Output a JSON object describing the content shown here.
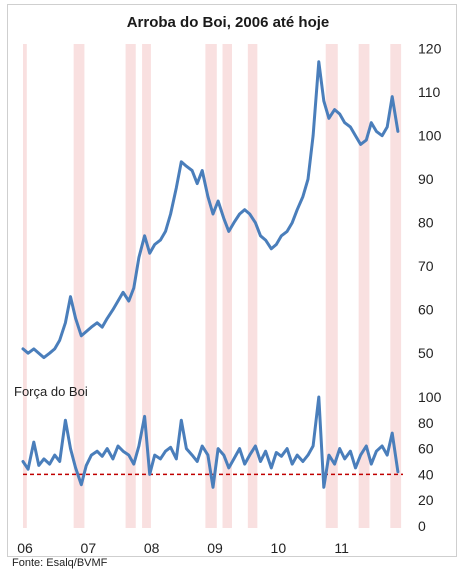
{
  "chart_data": [
    {
      "type": "line",
      "title": "Arroba do Boi, 2006 até hoje",
      "y_ticks": [
        "120",
        "110",
        "100",
        "90",
        "80",
        "70",
        "60",
        "50"
      ],
      "ylim": [
        45,
        122
      ],
      "x_ticks": [
        "06",
        "07",
        "08",
        "09",
        "10",
        "11"
      ],
      "xlim": [
        2006.0,
        2012.0
      ],
      "series": [
        {
          "color": "#4a7ebb",
          "x": [
            2006.0,
            2006.08,
            2006.17,
            2006.25,
            2006.33,
            2006.42,
            2006.5,
            2006.58,
            2006.67,
            2006.75,
            2006.83,
            2006.92,
            2007.0,
            2007.08,
            2007.17,
            2007.25,
            2007.33,
            2007.42,
            2007.5,
            2007.58,
            2007.67,
            2007.75,
            2007.83,
            2007.92,
            2008.0,
            2008.08,
            2008.17,
            2008.25,
            2008.33,
            2008.42,
            2008.5,
            2008.58,
            2008.67,
            2008.75,
            2008.83,
            2008.92,
            2009.0,
            2009.08,
            2009.17,
            2009.25,
            2009.33,
            2009.42,
            2009.5,
            2009.58,
            2009.67,
            2009.75,
            2009.83,
            2009.92,
            2010.0,
            2010.08,
            2010.17,
            2010.25,
            2010.33,
            2010.42,
            2010.5,
            2010.58,
            2010.67,
            2010.75,
            2010.83,
            2010.92,
            2011.0,
            2011.08,
            2011.17,
            2011.25,
            2011.33,
            2011.42,
            2011.5,
            2011.58,
            2011.67,
            2011.75,
            2011.83,
            2011.92
          ],
          "values": [
            51,
            50,
            51,
            50,
            49,
            50,
            51,
            53,
            57,
            63,
            58,
            54,
            55,
            56,
            57,
            56,
            58,
            60,
            62,
            64,
            62,
            65,
            72,
            77,
            73,
            75,
            76,
            78,
            82,
            88,
            94,
            93,
            92,
            89,
            92,
            86,
            82,
            85,
            81,
            78,
            80,
            82,
            83,
            82,
            80,
            77,
            76,
            74,
            75,
            77,
            78,
            80,
            83,
            86,
            90,
            100,
            117,
            108,
            104,
            106,
            105,
            103,
            102,
            100,
            98,
            99,
            103,
            101,
            100,
            102,
            109,
            101
          ]
        }
      ]
    },
    {
      "type": "line",
      "title": "Força do Boi",
      "y_ticks": [
        "100",
        "80",
        "60",
        "40",
        "20",
        "0"
      ],
      "ylim": [
        0,
        100
      ],
      "reference_line": 40,
      "reference_color": "#c00000",
      "series": [
        {
          "color": "#4a7ebb",
          "x": [
            2006.0,
            2006.08,
            2006.17,
            2006.25,
            2006.33,
            2006.42,
            2006.5,
            2006.58,
            2006.67,
            2006.75,
            2006.83,
            2006.92,
            2007.0,
            2007.08,
            2007.17,
            2007.25,
            2007.33,
            2007.42,
            2007.5,
            2007.58,
            2007.67,
            2007.75,
            2007.83,
            2007.92,
            2008.0,
            2008.08,
            2008.17,
            2008.25,
            2008.33,
            2008.42,
            2008.5,
            2008.58,
            2008.67,
            2008.75,
            2008.83,
            2008.92,
            2009.0,
            2009.08,
            2009.17,
            2009.25,
            2009.33,
            2009.42,
            2009.5,
            2009.58,
            2009.67,
            2009.75,
            2009.83,
            2009.92,
            2010.0,
            2010.08,
            2010.17,
            2010.25,
            2010.33,
            2010.42,
            2010.5,
            2010.58,
            2010.67,
            2010.75,
            2010.83,
            2010.92,
            2011.0,
            2011.08,
            2011.17,
            2011.25,
            2011.33,
            2011.42,
            2011.5,
            2011.58,
            2011.67,
            2011.75,
            2011.83,
            2011.92
          ],
          "values": [
            50,
            44,
            65,
            47,
            52,
            48,
            55,
            50,
            82,
            60,
            45,
            32,
            47,
            55,
            58,
            54,
            60,
            52,
            62,
            58,
            55,
            48,
            62,
            85,
            40,
            55,
            52,
            58,
            61,
            52,
            82,
            60,
            55,
            50,
            62,
            55,
            30,
            60,
            55,
            45,
            52,
            60,
            48,
            55,
            62,
            50,
            58,
            45,
            57,
            54,
            60,
            48,
            55,
            50,
            55,
            62,
            100,
            30,
            55,
            48,
            60,
            52,
            58,
            45,
            55,
            62,
            48,
            58,
            62,
            55,
            72,
            42
          ]
        }
      ]
    }
  ],
  "recession_bands": [
    [
      2006.0,
      2006.06
    ],
    [
      2006.8,
      2006.97
    ],
    [
      2007.62,
      2007.78
    ],
    [
      2007.88,
      2008.02
    ],
    [
      2008.88,
      2009.06
    ],
    [
      2009.15,
      2009.3
    ],
    [
      2009.55,
      2009.7
    ],
    [
      2010.78,
      2010.97
    ],
    [
      2011.3,
      2011.47
    ],
    [
      2011.8,
      2011.97
    ]
  ],
  "band_color": "#f4c7c7",
  "source": "Fonte: Esalq/BVMF"
}
